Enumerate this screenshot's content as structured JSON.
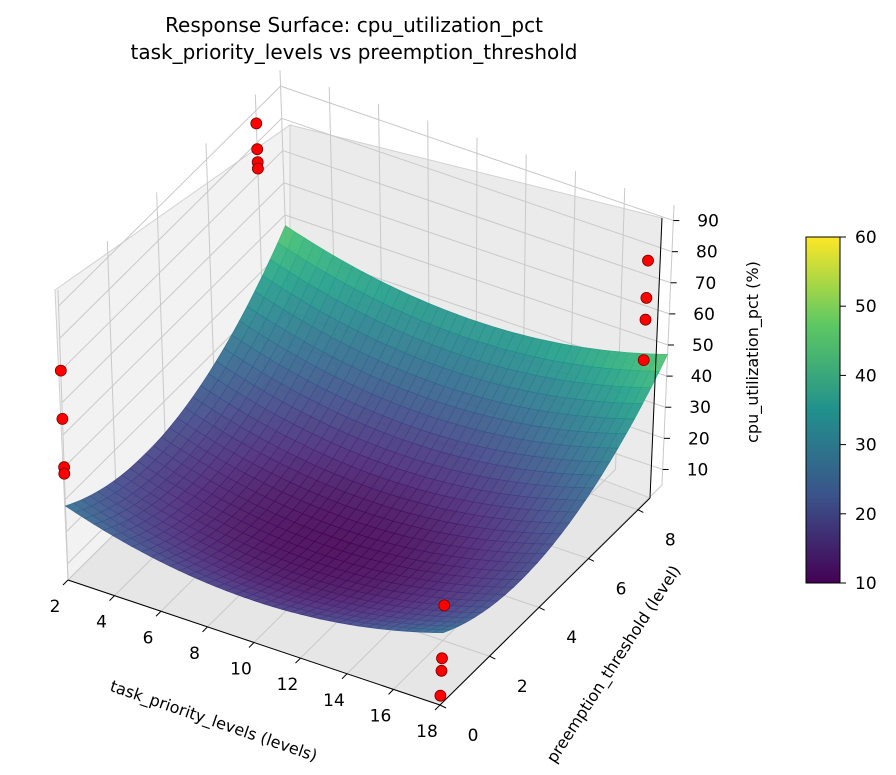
{
  "chart_data": {
    "type": "surface3d",
    "title_lines": [
      "Response Surface: cpu_utilization_pct",
      "task_priority_levels vs preemption_threshold"
    ],
    "xlabel": "task_priority_levels (levels)",
    "ylabel": "preemption_threshold (level)",
    "zlabel": "cpu_utilization_pct (%)",
    "x_ticks": [
      "2",
      "4",
      "6",
      "8",
      "10",
      "12",
      "14",
      "16",
      "18"
    ],
    "y_ticks": [
      "0",
      "2",
      "4",
      "6",
      "8"
    ],
    "z_ticks": [
      "10",
      "20",
      "30",
      "40",
      "50",
      "60",
      "70",
      "80",
      "90"
    ],
    "xlim": [
      2,
      18
    ],
    "ylim": [
      0,
      9
    ],
    "zlim": [
      5,
      95
    ],
    "colormap": "viridis",
    "colorbar": {
      "ticks": [
        "10",
        "20",
        "30",
        "40",
        "50",
        "60"
      ],
      "range": [
        10,
        60
      ]
    },
    "surface_corner_values": {
      "x2_y0": 28,
      "x2_y9": 59,
      "x18_y0": 30,
      "x18_y9": 61,
      "minimum": 10
    },
    "scatter_points": [
      {
        "x": 2,
        "y": 0,
        "z": 70
      },
      {
        "x": 2,
        "y": 0,
        "z": 55
      },
      {
        "x": 2,
        "y": 0,
        "z": 40
      },
      {
        "x": 2,
        "y": 0,
        "z": 38
      },
      {
        "x": 2,
        "y": 8,
        "z": 86
      },
      {
        "x": 2,
        "y": 8,
        "z": 78
      },
      {
        "x": 2,
        "y": 8,
        "z": 74
      },
      {
        "x": 2,
        "y": 8,
        "z": 72
      },
      {
        "x": 18,
        "y": 0,
        "z": 37
      },
      {
        "x": 18,
        "y": 0,
        "z": 20
      },
      {
        "x": 18,
        "y": 0,
        "z": 16
      },
      {
        "x": 18,
        "y": 0,
        "z": 8
      },
      {
        "x": 18,
        "y": 8,
        "z": 85
      },
      {
        "x": 18,
        "y": 8,
        "z": 73
      },
      {
        "x": 18,
        "y": 8,
        "z": 66
      },
      {
        "x": 18,
        "y": 8,
        "z": 53
      }
    ],
    "point_color": "#ff0000",
    "grid": true
  }
}
